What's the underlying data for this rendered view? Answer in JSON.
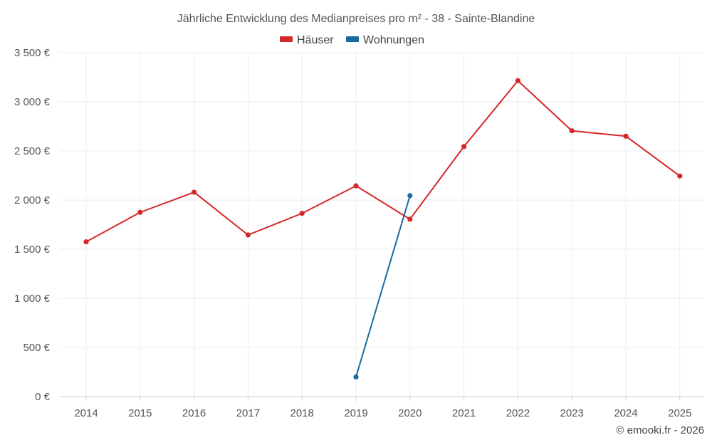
{
  "chart_data": {
    "type": "line",
    "title": "Jährliche Entwicklung des Medianpreises pro m² - 38 - Sainte-Blandine",
    "categories": [
      "2014",
      "2015",
      "2016",
      "2017",
      "2018",
      "2019",
      "2020",
      "2021",
      "2022",
      "2023",
      "2024",
      "2025"
    ],
    "ylim": [
      0,
      3500
    ],
    "yticks": [
      0,
      500,
      1000,
      1500,
      2000,
      2500,
      3000,
      3500
    ],
    "ytick_labels": [
      "0 €",
      "500 €",
      "1 000 €",
      "1 500 €",
      "2 000 €",
      "2 500 €",
      "3 000 €",
      "3 500 €"
    ],
    "grid": true,
    "legend_position": "top-center",
    "series": [
      {
        "name": "Häuser",
        "color": "#d62728",
        "values": [
          1575,
          1875,
          2080,
          1645,
          1865,
          2145,
          1805,
          2545,
          3215,
          2705,
          2650,
          2245
        ]
      },
      {
        "name": "Wohnungen",
        "color": "#1a6aa0",
        "values": [
          null,
          null,
          null,
          null,
          null,
          200,
          2045,
          null,
          null,
          null,
          null,
          null
        ]
      }
    ],
    "credit": "© emooki.fr - 2026"
  }
}
